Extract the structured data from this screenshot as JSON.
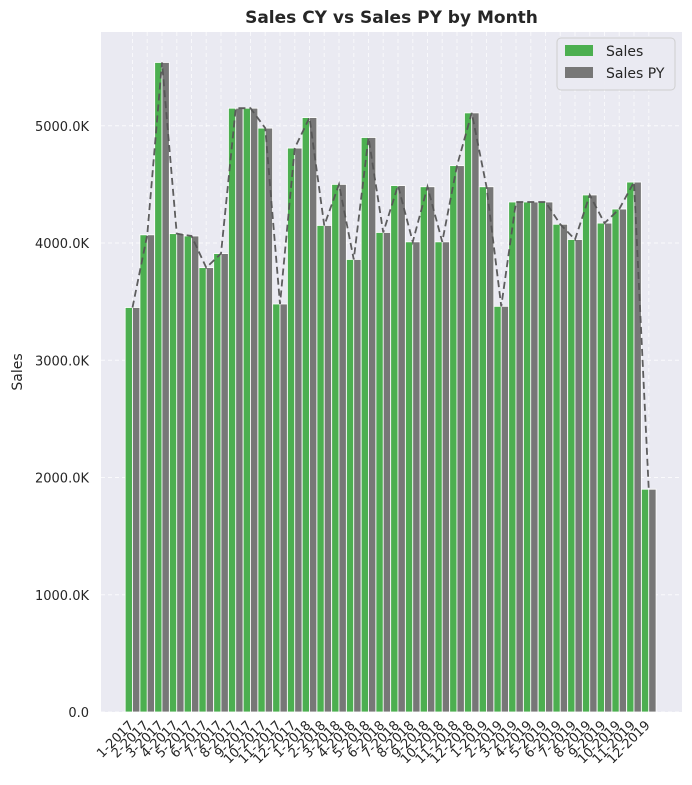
{
  "chart_data": {
    "type": "bar",
    "title": "Sales CY vs Sales PY by Month",
    "xlabel": "",
    "ylabel": "Sales",
    "ylim": [
      0,
      5800
    ],
    "y_ticks": [
      0,
      1000,
      2000,
      3000,
      4000,
      5000
    ],
    "y_tick_labels": [
      "0.0",
      "1000.0K",
      "2000.0K",
      "3000.0K",
      "4000.0K",
      "5000.0K"
    ],
    "grid": true,
    "legend_position": "top-right",
    "categories": [
      "1-2017",
      "2-2017",
      "3-2017",
      "4-2017",
      "5-2017",
      "6-2017",
      "7-2017",
      "8-2017",
      "9-2017",
      "10-2017",
      "11-2017",
      "12-2017",
      "1-2018",
      "2-2018",
      "3-2018",
      "4-2018",
      "5-2018",
      "6-2018",
      "7-2018",
      "8-2018",
      "9-2018",
      "10-2018",
      "11-2018",
      "12-2018",
      "1-2019",
      "2-2019",
      "3-2019",
      "4-2019",
      "5-2019",
      "6-2019",
      "7-2019",
      "8-2019",
      "9-2019",
      "10-2019",
      "11-2019",
      "12-2019"
    ],
    "series": [
      {
        "name": "Sales",
        "color": "#4caf50",
        "values": [
          3450,
          4070,
          5540,
          4080,
          4060,
          3790,
          3910,
          5150,
          5150,
          4980,
          3480,
          4810,
          5070,
          4150,
          4500,
          3860,
          4900,
          4090,
          4490,
          4010,
          4480,
          4010,
          4660,
          5110,
          4480,
          3460,
          4350,
          4350,
          4350,
          4160,
          4030,
          4410,
          4170,
          4290,
          4520,
          1900
        ]
      },
      {
        "name": "Sales PY",
        "color": "#777777",
        "values": [
          3450,
          4070,
          5540,
          4080,
          4060,
          3790,
          3910,
          5150,
          5150,
          4980,
          3480,
          4810,
          5070,
          4150,
          4500,
          3860,
          4900,
          4090,
          4490,
          4010,
          4480,
          4010,
          4660,
          5110,
          4480,
          3460,
          4350,
          4350,
          4350,
          4160,
          4030,
          4410,
          4170,
          4290,
          4520,
          1900
        ]
      }
    ]
  }
}
